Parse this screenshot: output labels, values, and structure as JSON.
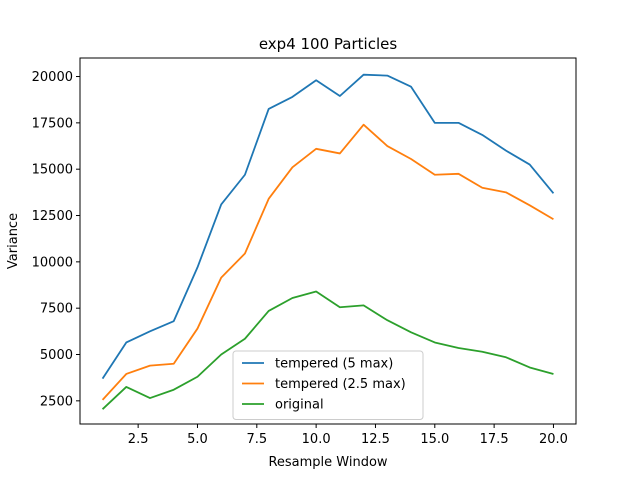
{
  "chart_data": {
    "type": "line",
    "title": "exp4 100 Particles",
    "xlabel": "Resample Window",
    "ylabel": "Variance",
    "xlim": [
      0.05,
      20.95
    ],
    "ylim": [
      1250,
      21000
    ],
    "x_ticks": [
      2.5,
      5.0,
      7.5,
      10.0,
      12.5,
      15.0,
      17.5,
      20.0
    ],
    "x_tick_labels": [
      "2.5",
      "5.0",
      "7.5",
      "10.0",
      "12.5",
      "15.0",
      "17.5",
      "20.0"
    ],
    "y_ticks": [
      2500,
      5000,
      7500,
      10000,
      12500,
      15000,
      17500,
      20000
    ],
    "y_tick_labels": [
      "2500",
      "5000",
      "7500",
      "10000",
      "12500",
      "15000",
      "17500",
      "20000"
    ],
    "grid": false,
    "legend_position": "lower-center",
    "x": [
      1,
      2,
      3,
      4,
      5,
      6,
      7,
      8,
      9,
      10,
      11,
      12,
      13,
      14,
      15,
      16,
      17,
      18,
      19,
      20
    ],
    "series": [
      {
        "name": "tempered (5 max)",
        "color": "#1f77b4",
        "values": [
          3700,
          5650,
          6250,
          6800,
          9700,
          13100,
          14700,
          18250,
          18900,
          19800,
          18950,
          20100,
          20050,
          19450,
          17500,
          17500,
          16850,
          16000,
          15250,
          13700
        ]
      },
      {
        "name": "tempered (2.5 max)",
        "color": "#ff7f0e",
        "values": [
          2550,
          3950,
          4400,
          4500,
          6400,
          9150,
          10450,
          13400,
          15100,
          16100,
          15850,
          17400,
          16250,
          15550,
          14700,
          14750,
          14000,
          13750,
          13050,
          12300
        ]
      },
      {
        "name": "original",
        "color": "#2ca02c",
        "values": [
          2050,
          3250,
          2650,
          3100,
          3800,
          5000,
          5850,
          7350,
          8050,
          8400,
          7550,
          7650,
          6850,
          6200,
          5650,
          5350,
          5150,
          4850,
          4300,
          3950
        ]
      }
    ]
  }
}
